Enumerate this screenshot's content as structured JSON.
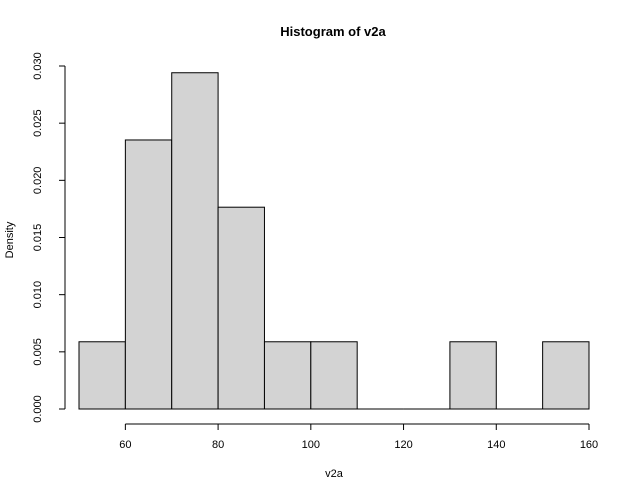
{
  "chart_data": {
    "type": "histogram",
    "title": "Histogram of v2a",
    "xlabel": "v2a",
    "ylabel": "Density",
    "bins": [
      {
        "start": 50,
        "end": 60,
        "density": 0.00588
      },
      {
        "start": 60,
        "end": 70,
        "density": 0.02353
      },
      {
        "start": 70,
        "end": 80,
        "density": 0.02941
      },
      {
        "start": 80,
        "end": 90,
        "density": 0.01765
      },
      {
        "start": 90,
        "end": 100,
        "density": 0.00588
      },
      {
        "start": 100,
        "end": 110,
        "density": 0.00588
      },
      {
        "start": 110,
        "end": 120,
        "density": 0
      },
      {
        "start": 120,
        "end": 130,
        "density": 0
      },
      {
        "start": 130,
        "end": 140,
        "density": 0.00588
      },
      {
        "start": 140,
        "end": 150,
        "density": 0
      },
      {
        "start": 150,
        "end": 160,
        "density": 0.00588
      }
    ],
    "x_ticks": [
      "60",
      "80",
      "100",
      "120",
      "140",
      "160"
    ],
    "y_ticks": [
      "0.000",
      "0.005",
      "0.010",
      "0.015",
      "0.020",
      "0.025",
      "0.030"
    ],
    "xlim": [
      50,
      160
    ],
    "ylim": [
      0,
      0.03
    ],
    "bar_fill": "#d3d3d3",
    "bar_stroke": "#000000",
    "grid": false
  }
}
